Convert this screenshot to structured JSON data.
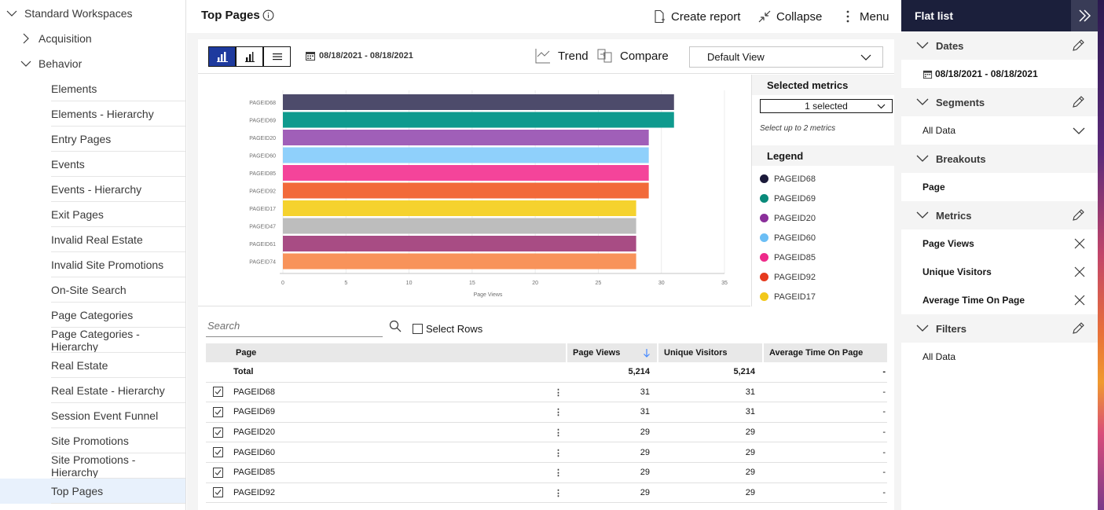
{
  "nav": {
    "items": [
      {
        "label": "Standard Workspaces",
        "level": 0,
        "expanded": true
      },
      {
        "label": "Acquisition",
        "level": 1,
        "expanded": false
      },
      {
        "label": "Behavior",
        "level": 1,
        "expanded": true
      },
      {
        "label": "Elements",
        "level": 2
      },
      {
        "label": "Elements - Hierarchy",
        "level": 2
      },
      {
        "label": "Entry Pages",
        "level": 2
      },
      {
        "label": "Events",
        "level": 2
      },
      {
        "label": "Events - Hierarchy",
        "level": 2
      },
      {
        "label": "Exit Pages",
        "level": 2
      },
      {
        "label": "Invalid Real Estate",
        "level": 2
      },
      {
        "label": "Invalid Site Promotions",
        "level": 2
      },
      {
        "label": "On-Site Search",
        "level": 2
      },
      {
        "label": "Page Categories",
        "level": 2
      },
      {
        "label": "Page Categories - Hierarchy",
        "level": 2
      },
      {
        "label": "Real Estate",
        "level": 2
      },
      {
        "label": "Real Estate - Hierarchy",
        "level": 2
      },
      {
        "label": "Session Event Funnel",
        "level": 2
      },
      {
        "label": "Site Promotions",
        "level": 2
      },
      {
        "label": "Site Promotions - Hierarchy",
        "level": 2
      },
      {
        "label": "Top Pages",
        "level": 2,
        "active": true
      }
    ]
  },
  "header": {
    "title": "Top Pages",
    "create_report": "Create report",
    "collapse": "Collapse",
    "menu": "Menu"
  },
  "toolbar": {
    "date_range": "08/18/2021 - 08/18/2021",
    "trend": "Trend",
    "compare": "Compare",
    "view_select": "Default View"
  },
  "metrics_panel": {
    "selected_metrics_title": "Selected metrics",
    "selected_value": "1 selected",
    "hint": "Select up to 2 metrics",
    "legend_title": "Legend",
    "legend": [
      {
        "label": "PAGEID68",
        "color": "#1b1a3a"
      },
      {
        "label": "PAGEID69",
        "color": "#0a8a7a"
      },
      {
        "label": "PAGEID20",
        "color": "#8a2f9a"
      },
      {
        "label": "PAGEID60",
        "color": "#6bbef5"
      },
      {
        "label": "PAGEID85",
        "color": "#ee2a8a"
      },
      {
        "label": "PAGEID92",
        "color": "#e63a1e"
      },
      {
        "label": "PAGEID17",
        "color": "#f2c81a"
      }
    ]
  },
  "chart_data": {
    "type": "bar",
    "orientation": "horizontal",
    "categories": [
      "PAGEID68",
      "PAGEID69",
      "PAGEID20",
      "PAGEID60",
      "PAGEID85",
      "PAGEID92",
      "PAGEID17",
      "PAGEID47",
      "PAGEID61",
      "PAGEID74"
    ],
    "values": [
      31,
      31,
      29,
      29,
      29,
      29,
      28,
      28,
      28,
      28
    ],
    "colors": [
      "#4d4b6b",
      "#0f9a8e",
      "#a05fb8",
      "#8fd0fb",
      "#f4449a",
      "#f26a3a",
      "#f5d22e",
      "#bdbdbd",
      "#a84c84",
      "#f8935a"
    ],
    "xlabel": "Page Views",
    "ylabel": "",
    "xlim": [
      0,
      35
    ],
    "xticks": [
      0,
      5,
      10,
      15,
      20,
      25,
      30,
      35
    ],
    "grid": true
  },
  "table": {
    "search_placeholder": "Search",
    "select_rows": "Select Rows",
    "columns": [
      "Page",
      "Page Views",
      "Unique Visitors",
      "Average Time On Page"
    ],
    "total": {
      "label": "Total",
      "page_views": "5,214",
      "unique_visitors": "5,214",
      "avg_time": "-"
    },
    "rows": [
      {
        "page": "PAGEID68",
        "page_views": "31",
        "unique_visitors": "31",
        "avg_time": "-"
      },
      {
        "page": "PAGEID69",
        "page_views": "31",
        "unique_visitors": "31",
        "avg_time": "-"
      },
      {
        "page": "PAGEID20",
        "page_views": "29",
        "unique_visitors": "29",
        "avg_time": "-"
      },
      {
        "page": "PAGEID60",
        "page_views": "29",
        "unique_visitors": "29",
        "avg_time": "-"
      },
      {
        "page": "PAGEID85",
        "page_views": "29",
        "unique_visitors": "29",
        "avg_time": "-"
      },
      {
        "page": "PAGEID92",
        "page_views": "29",
        "unique_visitors": "29",
        "avg_time": "-"
      }
    ]
  },
  "right_panel": {
    "title": "Flat list",
    "dates_title": "Dates",
    "dates_value": "08/18/2021 - 08/18/2021",
    "segments_title": "Segments",
    "segments_value": "All Data",
    "breakouts_title": "Breakouts",
    "breakouts_value": "Page",
    "metrics_title": "Metrics",
    "metrics": [
      "Page Views",
      "Unique Visitors",
      "Average Time On Page"
    ],
    "filters_title": "Filters",
    "filters_value": "All Data"
  }
}
